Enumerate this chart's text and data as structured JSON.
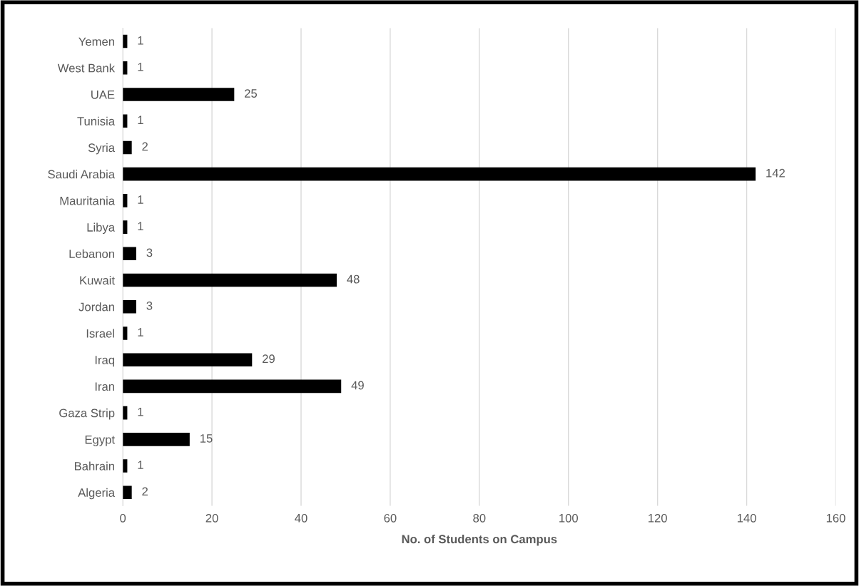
{
  "chart_data": {
    "type": "bar",
    "orientation": "horizontal",
    "xlabel": "No. of Students on Campus",
    "categories": [
      "Yemen",
      "West Bank",
      "UAE",
      "Tunisia",
      "Syria",
      "Saudi Arabia",
      "Mauritania",
      "Libya",
      "Lebanon",
      "Kuwait",
      "Jordan",
      "Israel",
      "Iraq",
      "Iran",
      "Gaza Strip",
      "Egypt",
      "Bahrain",
      "Algeria"
    ],
    "values": [
      1,
      1,
      25,
      1,
      2,
      142,
      1,
      1,
      3,
      48,
      3,
      1,
      29,
      49,
      1,
      15,
      1,
      2
    ],
    "color": "#000000",
    "xlim": [
      0,
      160
    ],
    "xticks": [
      0,
      20,
      40,
      60,
      80,
      100,
      120,
      140,
      160
    ],
    "grid": "x",
    "data_labels": true
  }
}
